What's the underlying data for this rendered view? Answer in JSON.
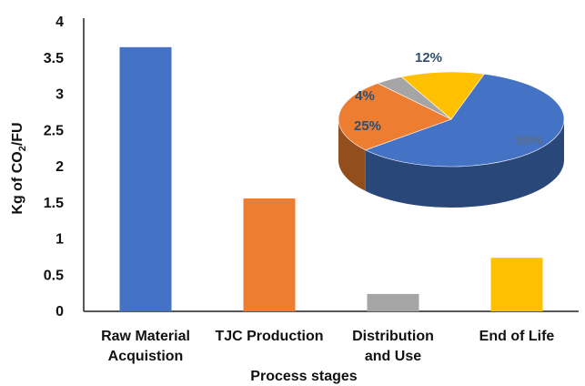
{
  "chart_data": [
    {
      "type": "bar",
      "categories": [
        [
          "Raw Material",
          "Acquistion"
        ],
        [
          "TJC Production"
        ],
        [
          "Distribution",
          "and Use"
        ],
        [
          "End of Life"
        ]
      ],
      "values": [
        3.65,
        1.56,
        0.24,
        0.74
      ],
      "colors": [
        "#4472C4",
        "#ED7D31",
        "#A5A5A5",
        "#FFC000"
      ],
      "xlabel": "Process stages",
      "ylabel": {
        "main": "Kg of CO",
        "subscript": "2",
        "suffix": "/FU"
      },
      "ylim": [
        0,
        4
      ],
      "yticks": [
        "0",
        "0.5",
        "1",
        "1.5",
        "2",
        "2.5",
        "3",
        "3.5",
        "4"
      ],
      "grid": false
    },
    {
      "type": "pie",
      "style": "3d",
      "slices": [
        {
          "label": "59%",
          "value": 59,
          "color": "#4472C4",
          "text_color": "#5A6E8C"
        },
        {
          "label": "25%",
          "value": 25,
          "color": "#ED7D31",
          "text_color": "#2F4F6F"
        },
        {
          "label": "4%",
          "value": 4,
          "color": "#A5A5A5",
          "text_color": "#2F4F6F"
        },
        {
          "label": "12%",
          "value": 12,
          "color": "#FFC000",
          "text_color": "#2F4F6F"
        }
      ]
    }
  ]
}
